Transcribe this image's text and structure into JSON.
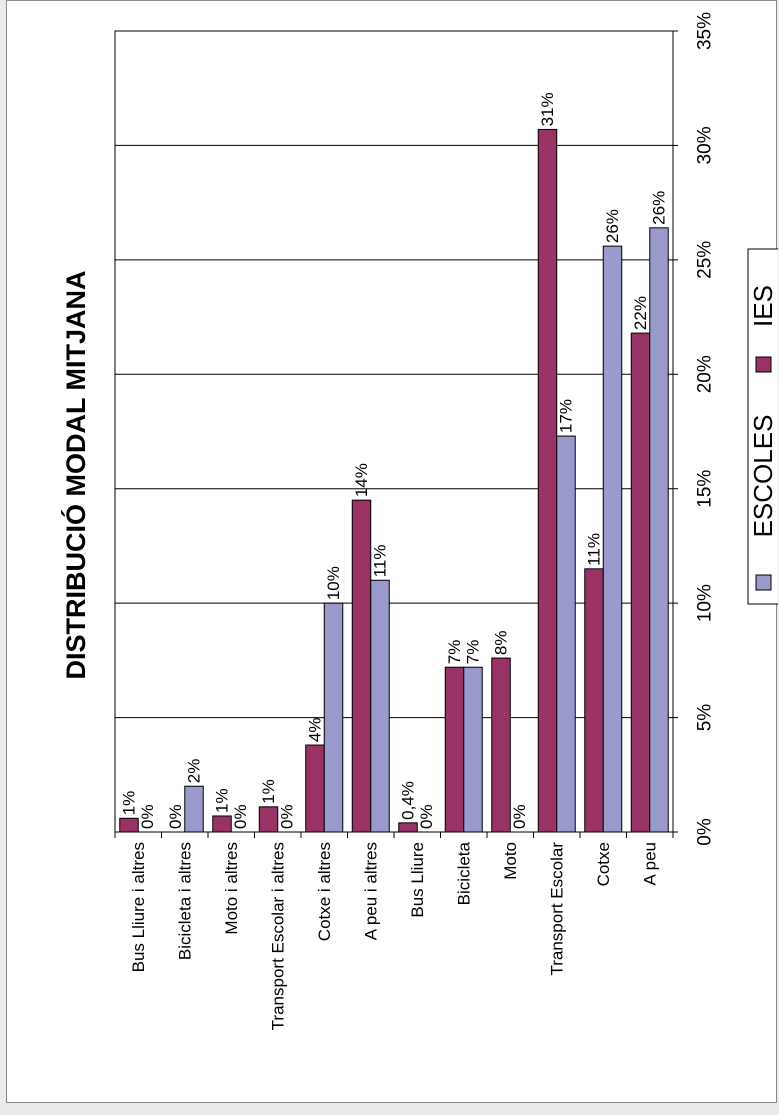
{
  "chart_data": {
    "type": "bar",
    "orientation": "rotated-90-ccw",
    "title": "DISTRIBUCIÓ MODAL MITJANA",
    "categories": [
      "Bus Lliure i altres",
      "Bicicleta i altres",
      "Moto i altres",
      "Transport Escolar i altres",
      "Cotxe i altres",
      "A peu i altres",
      "Bus Lliure",
      "Bicicleta",
      "Moto",
      "Transport Escolar",
      "Cotxe",
      "A peu"
    ],
    "series": [
      {
        "name": "IES",
        "color": "#993366",
        "values": [
          0.6,
          0.0,
          0.7,
          1.1,
          3.8,
          14.5,
          0.4,
          7.2,
          7.6,
          30.7,
          11.5,
          21.8
        ],
        "labels": [
          "1%",
          "0%",
          "1%",
          "1%",
          "4%",
          "14%",
          "0,4%",
          "7%",
          "8%",
          "31%",
          "11%",
          "22%"
        ]
      },
      {
        "name": "ESCOLES",
        "color": "#9999cc",
        "values": [
          0.0,
          2.0,
          0.0,
          0.0,
          10.0,
          11.0,
          0.0,
          7.2,
          0.0,
          17.3,
          25.6,
          26.4
        ],
        "labels": [
          "0%",
          "2%",
          "0%",
          "0%",
          "10%",
          "11%",
          "0%",
          "7%",
          "0%",
          "17%",
          "26%",
          "26%"
        ]
      }
    ],
    "value_axis": {
      "min": 0,
      "max": 35,
      "step": 5,
      "tick_labels": [
        "0%",
        "5%",
        "10%",
        "15%",
        "20%",
        "25%",
        "30%",
        "35%"
      ]
    },
    "grid": true,
    "legend": {
      "position": "right",
      "entries": [
        "ESCOLES",
        "IES"
      ]
    }
  }
}
